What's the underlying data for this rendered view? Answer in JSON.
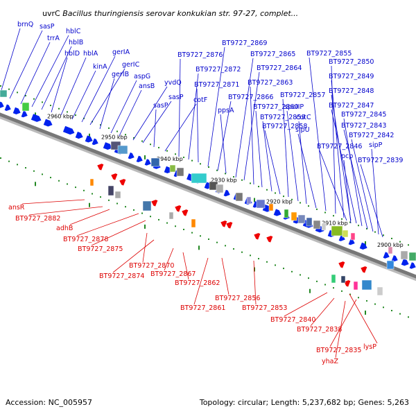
{
  "title": {
    "prefix": "uvrC ",
    "organism": "Bacillus thuringiensis serovar konkukian str. 97-27, complet..."
  },
  "footer": {
    "accession": "Accession: NC_005957",
    "topology": "Topology: circular; Length: 5,237,682 bp; Genes: 5,263"
  },
  "colors": {
    "forward_label": "#0000cc",
    "reverse_label": "#dd0000",
    "forward_gene": "#0022ee",
    "reverse_gene": "#ee0000",
    "backbone": "#777777",
    "tick": "#228822"
  },
  "scale_ticks": [
    "2960 kbp",
    "2950 kbp",
    "2940 kbp",
    "2930 kbp",
    "2920 kbp",
    "2910 kbp",
    "2900 kbp"
  ],
  "forward_labels": [
    "brnQ",
    "sasP",
    "trrA",
    "hblC",
    "hblB",
    "hblD",
    "hblA",
    "kinA",
    "gerIA",
    "gerIC",
    "gerIB",
    "aspG",
    "ansB",
    "yvdQ",
    "sasP",
    "sasP",
    "cotF",
    "BT9727_2876",
    "BT9727_2872",
    "BT9727_2871",
    "BT9727_2869",
    "BT9727_2866",
    "ppsA",
    "BT9727_2865",
    "BT9727_2864",
    "BT9727_2863",
    "BT9727_2860",
    "BT9727_2859",
    "BT9727_2858",
    "BT9727_2857",
    "spoIIP",
    "cutC",
    "sipU",
    "BT9727_2855",
    "BT9727_2850",
    "BT9727_2849",
    "BT9727_2848",
    "BT9727_2847",
    "BT9727_2845",
    "BT9727_2843",
    "BT9727_2842",
    "BT9727_2846",
    "sipP",
    "pcp",
    "BT9727_2839"
  ],
  "reverse_labels": [
    "ansR",
    "BT9727_2882",
    "adhB",
    "BT9727_2878",
    "BT9727_2875",
    "BT9727_2870",
    "BT9727_2874",
    "BT9727_2867",
    "BT9727_2862",
    "BT9727_2856",
    "BT9727_2861",
    "BT9727_2853",
    "BT9727_2840",
    "BT9727_2838",
    "BT9727_2835",
    "yhaZ",
    "lysP"
  ]
}
